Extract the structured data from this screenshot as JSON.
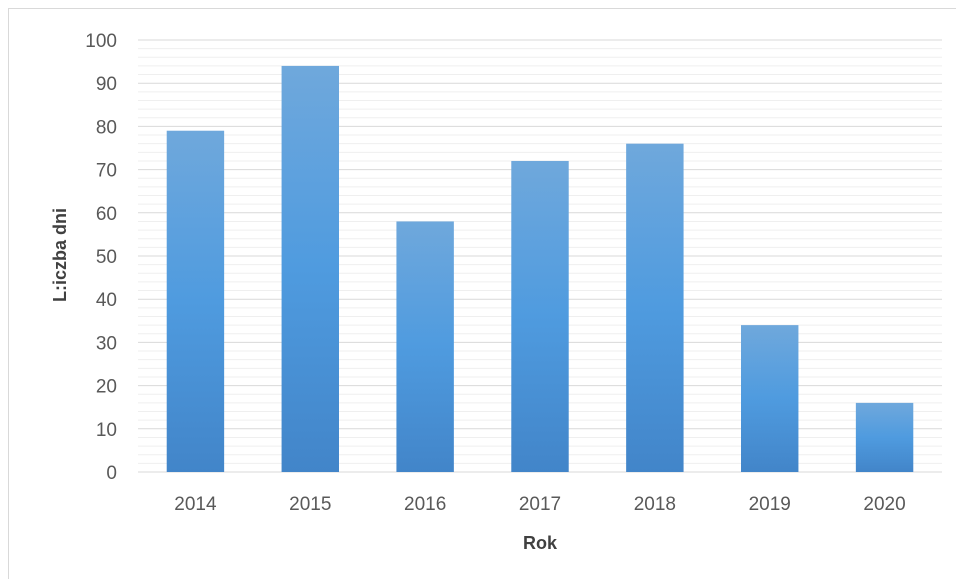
{
  "chart_data": {
    "type": "bar",
    "categories": [
      "2014",
      "2015",
      "2016",
      "2017",
      "2018",
      "2019",
      "2020"
    ],
    "values": [
      79,
      94,
      58,
      72,
      76,
      34,
      16
    ],
    "title": "",
    "xlabel": "Rok",
    "ylabel": "L:iczba dni",
    "ylim": [
      0,
      100
    ],
    "yticks": [
      0,
      10,
      20,
      30,
      40,
      50,
      60,
      70,
      80,
      90,
      100
    ],
    "grid": true,
    "colors": {
      "bar_top": "#6FA8DC",
      "bar_mid": "#4F9BDF",
      "bar_bottom": "#4285C9",
      "grid": "#e6e6e6",
      "axis": "#d9d9d9"
    }
  }
}
